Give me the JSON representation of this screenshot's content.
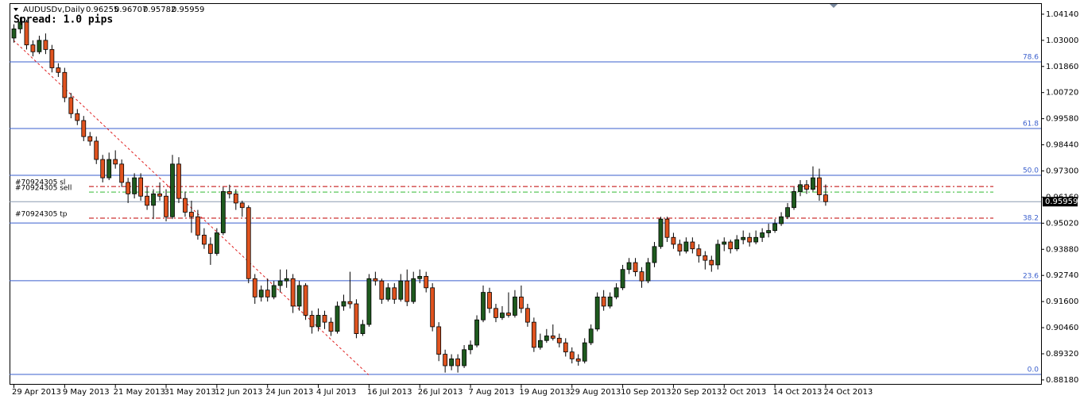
{
  "chart_data": {
    "type": "candlestick",
    "title": "AUDUSDv,Daily",
    "annotation": "Spread: 1.0 pips",
    "up_color": "#1e5a1e",
    "down_color": "#e0531f",
    "ylim": [
      0.8797,
      1.0476
    ],
    "yticks": [
      {
        "value": 1.0414,
        "label": "1.04140"
      },
      {
        "value": 1.03,
        "label": "1.03000"
      },
      {
        "value": 1.0186,
        "label": "1.01860"
      },
      {
        "value": 1.0072,
        "label": "1.00720"
      },
      {
        "value": 0.9958,
        "label": "0.99580"
      },
      {
        "value": 0.9844,
        "label": "0.98440"
      },
      {
        "value": 0.973,
        "label": "0.97300"
      },
      {
        "value": 0.9616,
        "label": "0.96160"
      },
      {
        "value": 0.9502,
        "label": "0.95020"
      },
      {
        "value": 0.9388,
        "label": "0.93880"
      },
      {
        "value": 0.9274,
        "label": "0.92740"
      },
      {
        "value": 0.916,
        "label": "0.91600"
      },
      {
        "value": 0.9046,
        "label": "0.90460"
      },
      {
        "value": 0.8932,
        "label": "0.89320"
      },
      {
        "value": 0.8818,
        "label": "0.88180"
      }
    ],
    "categories": [
      "29 Apr 2013",
      null,
      null,
      null,
      null,
      null,
      null,
      null,
      "9 May 2013",
      null,
      null,
      null,
      null,
      null,
      null,
      null,
      "21 May 2013",
      null,
      null,
      null,
      null,
      null,
      null,
      null,
      "31 May 2013",
      null,
      null,
      null,
      null,
      null,
      null,
      null,
      "12 Jun 2013",
      null,
      null,
      null,
      null,
      null,
      null,
      null,
      "24 Jun 2013",
      null,
      null,
      null,
      null,
      null,
      null,
      null,
      "4 Jul 2013",
      null,
      null,
      null,
      null,
      null,
      null,
      null,
      "16 Jul 2013",
      null,
      null,
      null,
      null,
      null,
      null,
      null,
      "26 Jul 2013",
      null,
      null,
      null,
      null,
      null,
      null,
      null,
      "7 Aug 2013",
      null,
      null,
      null,
      null,
      null,
      null,
      null,
      "19 Aug 2013",
      null,
      null,
      null,
      null,
      null,
      null,
      null,
      "29 Aug 2013",
      null,
      null,
      null,
      null,
      null,
      null,
      null,
      "10 Sep 2013",
      null,
      null,
      null,
      null,
      null,
      null,
      null,
      "20 Sep 2013",
      null,
      null,
      null,
      null,
      null,
      null,
      null,
      "2 Oct 2013",
      null,
      null,
      null,
      null,
      null,
      null,
      null,
      "14 Oct 2013",
      null,
      null,
      null,
      null,
      null,
      null,
      null,
      "24 Oct 2013"
    ],
    "ohlc": [
      [
        1.031,
        1.037,
        1.029,
        1.035
      ],
      [
        1.035,
        1.04,
        1.033,
        1.038
      ],
      [
        1.038,
        1.039,
        1.026,
        1.028
      ],
      [
        1.028,
        1.03,
        1.023,
        1.025
      ],
      [
        1.025,
        1.032,
        1.024,
        1.03
      ],
      [
        1.03,
        1.033,
        1.024,
        1.026
      ],
      [
        1.026,
        1.028,
        1.016,
        1.018
      ],
      [
        1.018,
        1.02,
        1.014,
        1.016
      ],
      [
        1.016,
        1.018,
        1.003,
        1.005
      ],
      [
        1.005,
        1.007,
        0.996,
        0.998
      ],
      [
        0.998,
        1.0,
        0.993,
        0.995
      ],
      [
        0.995,
        0.997,
        0.986,
        0.988
      ],
      [
        0.988,
        0.99,
        0.984,
        0.986
      ],
      [
        0.986,
        0.988,
        0.976,
        0.978
      ],
      [
        0.978,
        0.98,
        0.968,
        0.97
      ],
      [
        0.97,
        0.981,
        0.969,
        0.978
      ],
      [
        0.978,
        0.982,
        0.974,
        0.976
      ],
      [
        0.976,
        0.978,
        0.966,
        0.968
      ],
      [
        0.968,
        0.97,
        0.959,
        0.963
      ],
      [
        0.963,
        0.972,
        0.961,
        0.97
      ],
      [
        0.97,
        0.972,
        0.96,
        0.962
      ],
      [
        0.962,
        0.966,
        0.956,
        0.958
      ],
      [
        0.958,
        0.965,
        0.952,
        0.963
      ],
      [
        0.963,
        0.968,
        0.96,
        0.962
      ],
      [
        0.962,
        0.965,
        0.951,
        0.953
      ],
      [
        0.953,
        0.98,
        0.952,
        0.976
      ],
      [
        0.976,
        0.979,
        0.959,
        0.961
      ],
      [
        0.961,
        0.964,
        0.953,
        0.955
      ],
      [
        0.955,
        0.96,
        0.946,
        0.953
      ],
      [
        0.953,
        0.956,
        0.943,
        0.945
      ],
      [
        0.945,
        0.948,
        0.939,
        0.941
      ],
      [
        0.941,
        0.944,
        0.932,
        0.937
      ],
      [
        0.937,
        0.948,
        0.936,
        0.946
      ],
      [
        0.946,
        0.966,
        0.945,
        0.964
      ],
      [
        0.964,
        0.967,
        0.961,
        0.963
      ],
      [
        0.963,
        0.965,
        0.956,
        0.959
      ],
      [
        0.959,
        0.96,
        0.953,
        0.957
      ],
      [
        0.957,
        0.958,
        0.924,
        0.926
      ],
      [
        0.926,
        0.928,
        0.915,
        0.918
      ],
      [
        0.918,
        0.923,
        0.916,
        0.921
      ],
      [
        0.921,
        0.926,
        0.916,
        0.918
      ],
      [
        0.918,
        0.925,
        0.917,
        0.923
      ],
      [
        0.923,
        0.93,
        0.92,
        0.925
      ],
      [
        0.925,
        0.93,
        0.922,
        0.926
      ],
      [
        0.926,
        0.928,
        0.911,
        0.914
      ],
      [
        0.914,
        0.925,
        0.912,
        0.923
      ],
      [
        0.923,
        0.924,
        0.908,
        0.91
      ],
      [
        0.91,
        0.912,
        0.902,
        0.905
      ],
      [
        0.905,
        0.913,
        0.903,
        0.91
      ],
      [
        0.91,
        0.912,
        0.904,
        0.907
      ],
      [
        0.907,
        0.909,
        0.901,
        0.903
      ],
      [
        0.903,
        0.916,
        0.902,
        0.914
      ],
      [
        0.914,
        0.919,
        0.912,
        0.916
      ],
      [
        0.916,
        0.929,
        0.913,
        0.915
      ],
      [
        0.915,
        0.917,
        0.9,
        0.902
      ],
      [
        0.902,
        0.908,
        0.901,
        0.906
      ],
      [
        0.906,
        0.928,
        0.905,
        0.926
      ],
      [
        0.926,
        0.929,
        0.923,
        0.925
      ],
      [
        0.925,
        0.926,
        0.915,
        0.917
      ],
      [
        0.917,
        0.924,
        0.916,
        0.922
      ],
      [
        0.922,
        0.924,
        0.915,
        0.917
      ],
      [
        0.917,
        0.928,
        0.916,
        0.925
      ],
      [
        0.925,
        0.93,
        0.914,
        0.916
      ],
      [
        0.916,
        0.929,
        0.915,
        0.926
      ],
      [
        0.926,
        0.93,
        0.924,
        0.927
      ],
      [
        0.927,
        0.929,
        0.92,
        0.922
      ],
      [
        0.922,
        0.924,
        0.903,
        0.905
      ],
      [
        0.905,
        0.907,
        0.89,
        0.893
      ],
      [
        0.893,
        0.895,
        0.885,
        0.888
      ],
      [
        0.888,
        0.893,
        0.886,
        0.891
      ],
      [
        0.891,
        0.893,
        0.885,
        0.888
      ],
      [
        0.888,
        0.897,
        0.887,
        0.895
      ],
      [
        0.895,
        0.899,
        0.893,
        0.897
      ],
      [
        0.897,
        0.91,
        0.896,
        0.908
      ],
      [
        0.908,
        0.923,
        0.907,
        0.92
      ],
      [
        0.92,
        0.922,
        0.911,
        0.913
      ],
      [
        0.913,
        0.915,
        0.907,
        0.909
      ],
      [
        0.909,
        0.914,
        0.908,
        0.911
      ],
      [
        0.911,
        0.92,
        0.909,
        0.91
      ],
      [
        0.91,
        0.921,
        0.909,
        0.918
      ],
      [
        0.918,
        0.923,
        0.911,
        0.913
      ],
      [
        0.913,
        0.915,
        0.905,
        0.907
      ],
      [
        0.907,
        0.909,
        0.894,
        0.896
      ],
      [
        0.896,
        0.902,
        0.895,
        0.899
      ],
      [
        0.899,
        0.904,
        0.898,
        0.901
      ],
      [
        0.901,
        0.906,
        0.899,
        0.9
      ],
      [
        0.9,
        0.902,
        0.896,
        0.898
      ],
      [
        0.898,
        0.9,
        0.892,
        0.894
      ],
      [
        0.894,
        0.896,
        0.889,
        0.891
      ],
      [
        0.891,
        0.893,
        0.888,
        0.89
      ],
      [
        0.89,
        0.9,
        0.889,
        0.898
      ],
      [
        0.898,
        0.906,
        0.897,
        0.904
      ],
      [
        0.904,
        0.92,
        0.903,
        0.918
      ],
      [
        0.918,
        0.921,
        0.912,
        0.914
      ],
      [
        0.914,
        0.92,
        0.913,
        0.918
      ],
      [
        0.918,
        0.924,
        0.917,
        0.922
      ],
      [
        0.922,
        0.932,
        0.921,
        0.93
      ],
      [
        0.93,
        0.935,
        0.928,
        0.933
      ],
      [
        0.933,
        0.935,
        0.927,
        0.929
      ],
      [
        0.929,
        0.931,
        0.922,
        0.925
      ],
      [
        0.925,
        0.935,
        0.924,
        0.933
      ],
      [
        0.933,
        0.942,
        0.931,
        0.94
      ],
      [
        0.94,
        0.953,
        0.939,
        0.952
      ],
      [
        0.952,
        0.953,
        0.942,
        0.944
      ],
      [
        0.944,
        0.946,
        0.939,
        0.941
      ],
      [
        0.941,
        0.943,
        0.936,
        0.938
      ],
      [
        0.938,
        0.944,
        0.937,
        0.942
      ],
      [
        0.942,
        0.944,
        0.937,
        0.939
      ],
      [
        0.939,
        0.941,
        0.933,
        0.936
      ],
      [
        0.936,
        0.938,
        0.93,
        0.934
      ],
      [
        0.934,
        0.936,
        0.929,
        0.932
      ],
      [
        0.932,
        0.943,
        0.93,
        0.941
      ],
      [
        0.941,
        0.944,
        0.938,
        0.942
      ],
      [
        0.942,
        0.943,
        0.937,
        0.939
      ],
      [
        0.939,
        0.945,
        0.938,
        0.943
      ],
      [
        0.943,
        0.947,
        0.941,
        0.944
      ],
      [
        0.944,
        0.946,
        0.94,
        0.942
      ],
      [
        0.942,
        0.947,
        0.941,
        0.944
      ],
      [
        0.944,
        0.948,
        0.942,
        0.946
      ],
      [
        0.946,
        0.95,
        0.944,
        0.947
      ],
      [
        0.947,
        0.952,
        0.946,
        0.95
      ],
      [
        0.95,
        0.955,
        0.949,
        0.953
      ],
      [
        0.953,
        0.959,
        0.952,
        0.957
      ],
      [
        0.957,
        0.966,
        0.956,
        0.964
      ],
      [
        0.964,
        0.969,
        0.962,
        0.967
      ],
      [
        0.967,
        0.969,
        0.963,
        0.965
      ],
      [
        0.965,
        0.975,
        0.964,
        0.97
      ],
      [
        0.97,
        0.974,
        0.96,
        0.9626
      ],
      [
        0.96255,
        0.96707,
        0.95782,
        0.95959
      ]
    ],
    "fib_levels": [
      {
        "label": "78.6",
        "value": 1.0206
      },
      {
        "label": "61.8",
        "value": 0.9915
      },
      {
        "label": "50.0",
        "value": 0.9711
      },
      {
        "label": "38.2",
        "value": 0.9503
      },
      {
        "label": "23.6",
        "value": 0.9251
      },
      {
        "label": "0.0",
        "value": 0.8842
      }
    ],
    "orders": [
      {
        "label": "#70924305 sl",
        "value": 0.9662,
        "color": "#c00000"
      },
      {
        "label": "#70924305 sell",
        "value": 0.9638,
        "color": "#33bb33"
      },
      {
        "label": "#70924305 tp",
        "value": 0.9524,
        "color": "#c00000"
      }
    ],
    "trendline": {
      "start": [
        0,
        1.03
      ],
      "end": [
        56,
        0.884
      ],
      "color": "#e02020"
    }
  }
}
